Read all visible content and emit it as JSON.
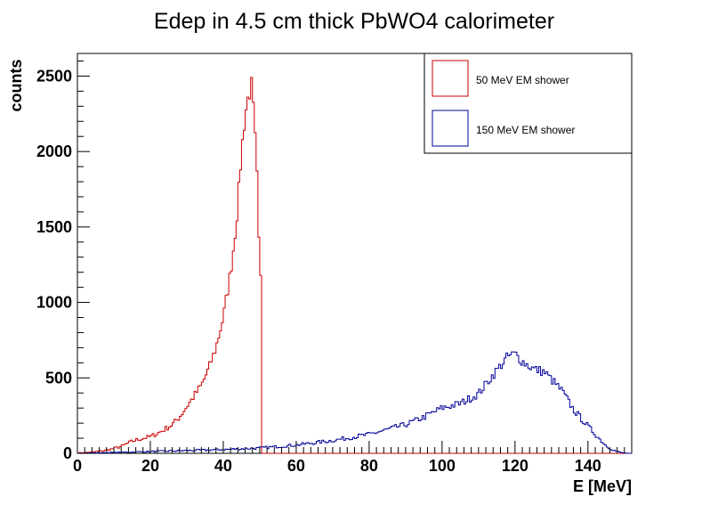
{
  "chart_data": {
    "type": "histogram",
    "title": "Edep in 4.5 cm thick PbWO4 calorimeter",
    "xlabel": "E [MeV]",
    "ylabel": "counts",
    "xlim": [
      0,
      152
    ],
    "ylim": [
      0,
      2650
    ],
    "x_ticks": [
      0,
      20,
      40,
      60,
      80,
      100,
      120,
      140
    ],
    "y_ticks": [
      0,
      500,
      1000,
      1500,
      2000,
      2500
    ],
    "grid": false,
    "legend_position": "top-right",
    "bin_width": 0.5,
    "series": [
      {
        "name": "50 MeV EM shower",
        "color": "#cc0000",
        "points": [
          [
            0,
            2
          ],
          [
            4,
            8
          ],
          [
            8,
            20
          ],
          [
            12,
            45
          ],
          [
            15,
            80
          ],
          [
            18,
            100
          ],
          [
            20,
            110
          ],
          [
            23,
            145
          ],
          [
            26,
            190
          ],
          [
            28,
            240
          ],
          [
            30,
            310
          ],
          [
            32,
            380
          ],
          [
            34,
            450
          ],
          [
            36,
            560
          ],
          [
            38,
            700
          ],
          [
            40,
            900
          ],
          [
            42,
            1200
          ],
          [
            43,
            1400
          ],
          [
            44,
            1650
          ],
          [
            45,
            2000
          ],
          [
            46,
            2250
          ],
          [
            47,
            2380
          ],
          [
            48,
            2450
          ],
          [
            48.5,
            2100
          ],
          [
            49,
            2050
          ],
          [
            49.5,
            1600
          ],
          [
            50,
            1180
          ],
          [
            50.3,
            1150
          ],
          [
            50.6,
            0
          ],
          [
            152,
            0
          ]
        ]
      },
      {
        "name": "150 MeV EM shower",
        "color": "#000099",
        "points": [
          [
            0,
            1
          ],
          [
            10,
            5
          ],
          [
            20,
            12
          ],
          [
            30,
            18
          ],
          [
            40,
            25
          ],
          [
            50,
            35
          ],
          [
            60,
            55
          ],
          [
            70,
            85
          ],
          [
            80,
            125
          ],
          [
            90,
            190
          ],
          [
            95,
            240
          ],
          [
            100,
            300
          ],
          [
            105,
            330
          ],
          [
            110,
            395
          ],
          [
            114,
            520
          ],
          [
            118,
            640
          ],
          [
            120,
            660
          ],
          [
            122,
            610
          ],
          [
            125,
            560
          ],
          [
            128,
            540
          ],
          [
            130,
            490
          ],
          [
            133,
            410
          ],
          [
            136,
            290
          ],
          [
            140,
            180
          ],
          [
            143,
            100
          ],
          [
            145,
            50
          ],
          [
            147,
            20
          ],
          [
            149,
            5
          ],
          [
            151,
            0
          ],
          [
            152,
            0
          ]
        ]
      }
    ]
  }
}
